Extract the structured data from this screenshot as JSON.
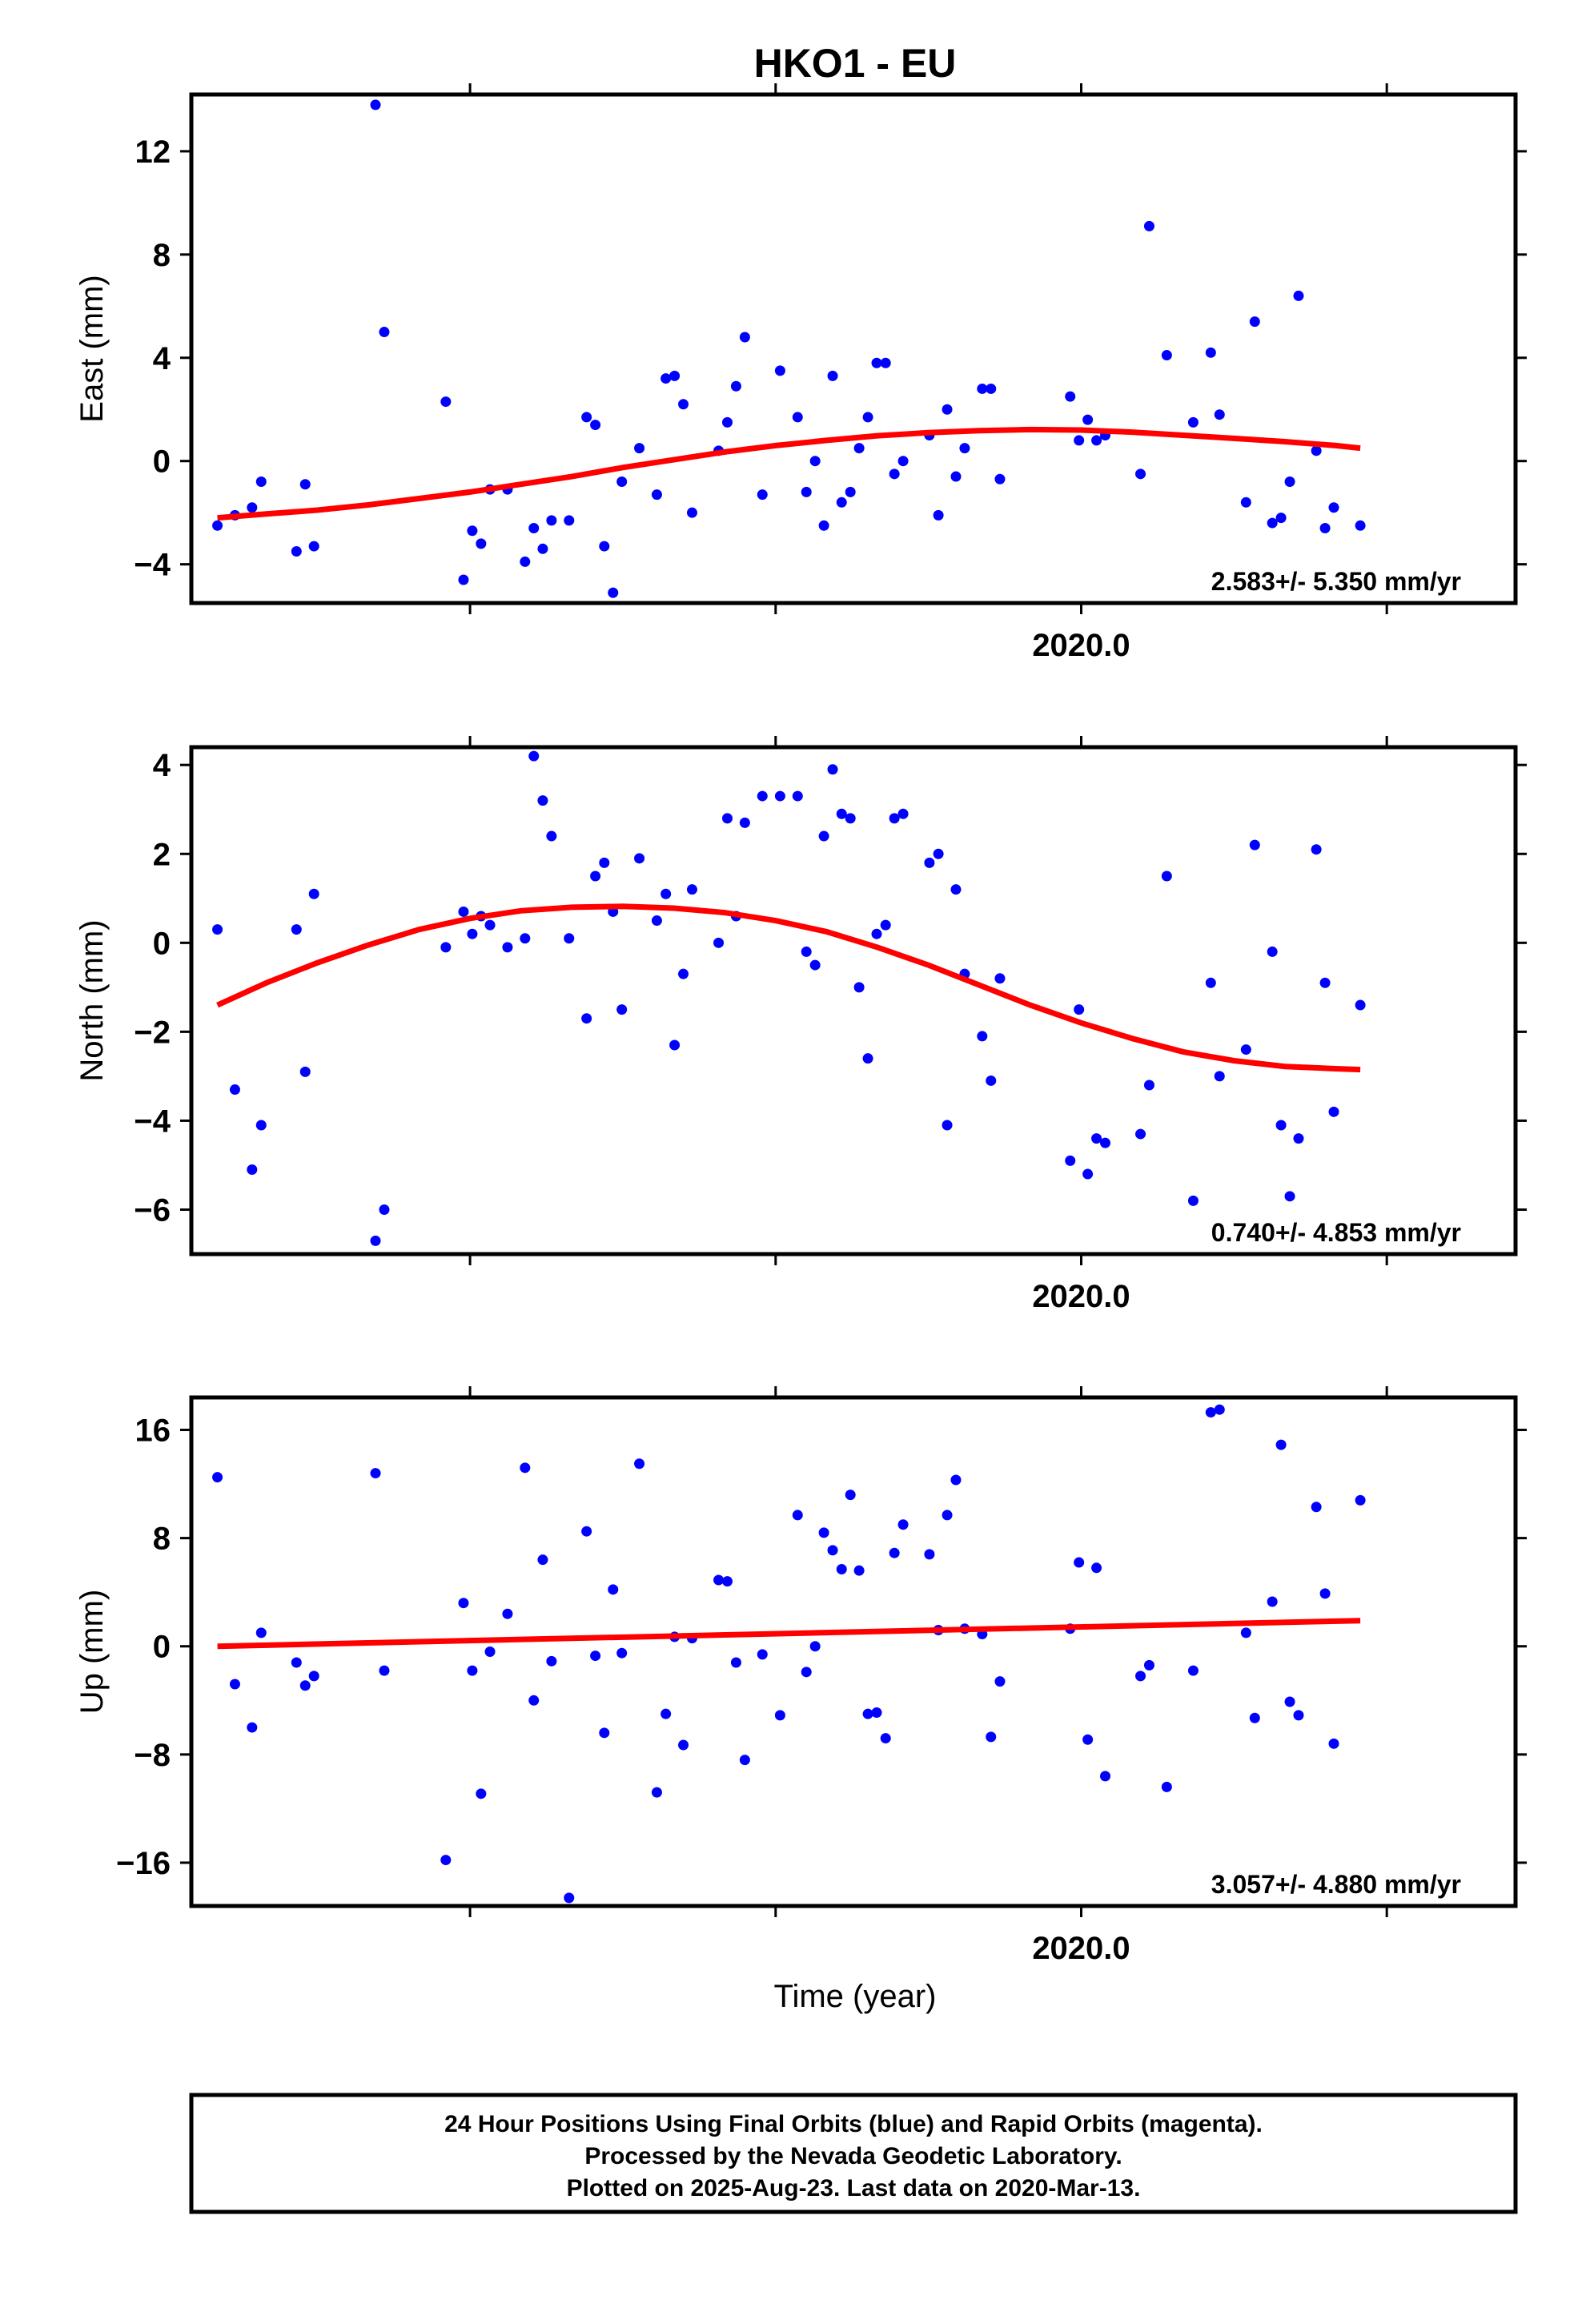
{
  "title": "HKO1 - EU",
  "colors": {
    "final_orbits": "#0000ff",
    "fit": "#ff0000",
    "frame": "#000000"
  },
  "x_axis": {
    "label": "Time (year)",
    "tick_label": "2020.0"
  },
  "footer": {
    "lines": [
      "24 Hour Positions Using Final Orbits (blue) and Rapid Orbits (magenta).",
      "Processed by the Nevada Geodetic Laboratory.",
      "Plotted on 2025-Aug-23. Last data on 2020-Mar-13."
    ]
  },
  "chart_data": [
    {
      "type": "scatter",
      "ylabel": "East (mm)",
      "rate_label": "2.583+/- 5.350 mm/yr",
      "xlim": [
        2019.5632,
        2020.2132
      ],
      "ylim": [
        -5.5,
        14.2
      ],
      "yticks": [
        -4,
        0,
        4,
        8,
        12
      ],
      "yticklabels": [
        "−4",
        "0",
        "4",
        "8",
        "12"
      ],
      "x_ticks": [
        2019.7,
        2019.85,
        2020.0,
        2020.15,
        2020.3
      ],
      "x_tick_labels": {
        "2020.0": "2020.0"
      },
      "points": [
        [
          2019.576,
          -2.5
        ],
        [
          2019.5846,
          -2.1
        ],
        [
          2019.593,
          -1.8
        ],
        [
          2019.5975,
          -0.8
        ],
        [
          2019.6148,
          -3.5
        ],
        [
          2019.6191,
          -0.9
        ],
        [
          2019.6234,
          -3.3
        ],
        [
          2019.6536,
          13.8
        ],
        [
          2019.6579,
          5.0
        ],
        [
          2019.6881,
          2.3
        ],
        [
          2019.6968,
          -4.6
        ],
        [
          2019.7011,
          -2.7
        ],
        [
          2019.7054,
          -3.2
        ],
        [
          2019.7098,
          -1.1
        ],
        [
          2019.7184,
          -1.1
        ],
        [
          2019.727,
          -3.9
        ],
        [
          2019.7313,
          -2.6
        ],
        [
          2019.7357,
          -3.4
        ],
        [
          2019.74,
          -2.3
        ],
        [
          2019.7486,
          -2.3
        ],
        [
          2019.7572,
          1.7
        ],
        [
          2019.7615,
          1.4
        ],
        [
          2019.7659,
          -3.3
        ],
        [
          2019.7702,
          -5.1
        ],
        [
          2019.7745,
          -0.8
        ],
        [
          2019.7831,
          0.5
        ],
        [
          2019.7917,
          -1.3
        ],
        [
          2019.7961,
          3.2
        ],
        [
          2019.8004,
          3.3
        ],
        [
          2019.8047,
          2.2
        ],
        [
          2019.809,
          -2.0
        ],
        [
          2019.822,
          0.4
        ],
        [
          2019.8263,
          1.5
        ],
        [
          2019.8306,
          2.9
        ],
        [
          2019.8349,
          4.8
        ],
        [
          2019.8435,
          -1.3
        ],
        [
          2019.8522,
          3.5
        ],
        [
          2019.8608,
          1.7
        ],
        [
          2019.8651,
          -1.2
        ],
        [
          2019.8694,
          0.0
        ],
        [
          2019.8737,
          -2.5
        ],
        [
          2019.878,
          3.3
        ],
        [
          2019.8824,
          -1.6
        ],
        [
          2019.8867,
          -1.2
        ],
        [
          2019.891,
          0.5
        ],
        [
          2019.8953,
          1.7
        ],
        [
          2019.8996,
          3.8
        ],
        [
          2019.904,
          3.8
        ],
        [
          2019.9083,
          -0.5
        ],
        [
          2019.9126,
          0.0
        ],
        [
          2019.9255,
          1.0
        ],
        [
          2019.9299,
          -2.1
        ],
        [
          2019.9342,
          2.0
        ],
        [
          2019.9385,
          -0.6
        ],
        [
          2019.9428,
          0.5
        ],
        [
          2019.9514,
          2.8
        ],
        [
          2019.9557,
          2.8
        ],
        [
          2019.9601,
          -0.7
        ],
        [
          2019.9946,
          2.5
        ],
        [
          2019.9989,
          0.8
        ],
        [
          2020.0032,
          1.6
        ],
        [
          2020.0075,
          0.8
        ],
        [
          2020.0118,
          1.0
        ],
        [
          2020.0291,
          -0.5
        ],
        [
          2020.0334,
          9.1
        ],
        [
          2020.042,
          4.1
        ],
        [
          2020.055,
          1.5
        ],
        [
          2020.0636,
          4.2
        ],
        [
          2020.0679,
          1.8
        ],
        [
          2020.0809,
          -1.6
        ],
        [
          2020.0852,
          5.4
        ],
        [
          2020.0938,
          -2.4
        ],
        [
          2020.0981,
          -2.2
        ],
        [
          2020.1024,
          -0.8
        ],
        [
          2020.1067,
          6.4
        ],
        [
          2020.1154,
          0.4
        ],
        [
          2020.1197,
          -2.6
        ],
        [
          2020.124,
          -1.8
        ],
        [
          2020.137,
          -2.5
        ]
      ],
      "fit": {
        "x": [
          2019.576,
          2019.6,
          2019.625,
          2019.65,
          2019.675,
          2019.7,
          2019.725,
          2019.75,
          2019.775,
          2019.8,
          2019.825,
          2019.85,
          2019.875,
          2019.9,
          2019.925,
          2019.95,
          2019.975,
          2020.0,
          2020.025,
          2020.05,
          2020.075,
          2020.1,
          2020.125,
          2020.137
        ],
        "y": [
          -2.2,
          -2.05,
          -1.9,
          -1.7,
          -1.45,
          -1.2,
          -0.9,
          -0.6,
          -0.25,
          0.05,
          0.35,
          0.6,
          0.8,
          0.98,
          1.1,
          1.18,
          1.22,
          1.2,
          1.12,
          1.0,
          0.88,
          0.75,
          0.6,
          0.5
        ]
      }
    },
    {
      "type": "scatter",
      "ylabel": "North (mm)",
      "rate_label": "0.740+/- 4.853 mm/yr",
      "xlim": [
        2019.5632,
        2020.2132
      ],
      "ylim": [
        -7.0,
        4.4
      ],
      "yticks": [
        -6,
        -4,
        -2,
        0,
        2,
        4
      ],
      "yticklabels": [
        "−6",
        "−4",
        "−2",
        "0",
        "2",
        "4"
      ],
      "x_ticks": [
        2019.7,
        2019.85,
        2020.0,
        2020.15,
        2020.3
      ],
      "x_tick_labels": {
        "2020.0": "2020.0"
      },
      "points": [
        [
          2019.576,
          0.3
        ],
        [
          2019.5846,
          -3.3
        ],
        [
          2019.593,
          -5.1
        ],
        [
          2019.5975,
          -4.1
        ],
        [
          2019.6148,
          0.3
        ],
        [
          2019.6191,
          -2.9
        ],
        [
          2019.6234,
          1.1
        ],
        [
          2019.6536,
          -6.7
        ],
        [
          2019.6579,
          -6.0
        ],
        [
          2019.6881,
          -0.1
        ],
        [
          2019.6968,
          0.7
        ],
        [
          2019.7011,
          0.2
        ],
        [
          2019.7054,
          0.6
        ],
        [
          2019.7098,
          0.4
        ],
        [
          2019.7184,
          -0.1
        ],
        [
          2019.727,
          0.1
        ],
        [
          2019.7313,
          4.2
        ],
        [
          2019.7357,
          3.2
        ],
        [
          2019.74,
          2.4
        ],
        [
          2019.7486,
          0.1
        ],
        [
          2019.7572,
          -1.7
        ],
        [
          2019.7615,
          1.5
        ],
        [
          2019.7659,
          1.8
        ],
        [
          2019.7702,
          0.7
        ],
        [
          2019.7745,
          -1.5
        ],
        [
          2019.7831,
          1.9
        ],
        [
          2019.7917,
          0.5
        ],
        [
          2019.7961,
          1.1
        ],
        [
          2019.8004,
          -2.3
        ],
        [
          2019.8047,
          -0.7
        ],
        [
          2019.809,
          1.2
        ],
        [
          2019.822,
          0.0
        ],
        [
          2019.8263,
          2.8
        ],
        [
          2019.8306,
          0.6
        ],
        [
          2019.8349,
          2.7
        ],
        [
          2019.8435,
          3.3
        ],
        [
          2019.8522,
          3.3
        ],
        [
          2019.8608,
          3.3
        ],
        [
          2019.8651,
          -0.2
        ],
        [
          2019.8694,
          -0.5
        ],
        [
          2019.8737,
          2.4
        ],
        [
          2019.878,
          3.9
        ],
        [
          2019.8824,
          2.9
        ],
        [
          2019.8867,
          2.8
        ],
        [
          2019.891,
          -1.0
        ],
        [
          2019.8953,
          -2.6
        ],
        [
          2019.8996,
          0.2
        ],
        [
          2019.904,
          0.4
        ],
        [
          2019.9083,
          2.8
        ],
        [
          2019.9126,
          2.9
        ],
        [
          2019.9255,
          1.8
        ],
        [
          2019.9299,
          2.0
        ],
        [
          2019.9342,
          -4.1
        ],
        [
          2019.9385,
          1.2
        ],
        [
          2019.9428,
          -0.7
        ],
        [
          2019.9514,
          -2.1
        ],
        [
          2019.9557,
          -3.1
        ],
        [
          2019.9601,
          -0.8
        ],
        [
          2019.9946,
          -4.9
        ],
        [
          2019.9989,
          -1.5
        ],
        [
          2020.0032,
          -5.2
        ],
        [
          2020.0075,
          -4.4
        ],
        [
          2020.0118,
          -4.5
        ],
        [
          2020.0291,
          -4.3
        ],
        [
          2020.0334,
          -3.2
        ],
        [
          2020.042,
          1.5
        ],
        [
          2020.055,
          -5.8
        ],
        [
          2020.0636,
          -0.9
        ],
        [
          2020.0679,
          -3.0
        ],
        [
          2020.0809,
          -2.4
        ],
        [
          2020.0852,
          2.2
        ],
        [
          2020.0938,
          -0.2
        ],
        [
          2020.0981,
          -4.1
        ],
        [
          2020.1024,
          -5.7
        ],
        [
          2020.1067,
          -4.4
        ],
        [
          2020.1154,
          2.1
        ],
        [
          2020.1197,
          -0.9
        ],
        [
          2020.124,
          -3.8
        ],
        [
          2020.137,
          -1.4
        ]
      ],
      "fit": {
        "x": [
          2019.576,
          2019.6,
          2019.625,
          2019.65,
          2019.675,
          2019.7,
          2019.725,
          2019.75,
          2019.775,
          2019.8,
          2019.825,
          2019.85,
          2019.875,
          2019.9,
          2019.925,
          2019.95,
          2019.975,
          2020.0,
          2020.025,
          2020.05,
          2020.075,
          2020.1,
          2020.125,
          2020.137
        ],
        "y": [
          -1.4,
          -0.9,
          -0.45,
          -0.05,
          0.3,
          0.55,
          0.72,
          0.8,
          0.82,
          0.78,
          0.68,
          0.5,
          0.25,
          -0.1,
          -0.5,
          -0.95,
          -1.4,
          -1.8,
          -2.15,
          -2.45,
          -2.65,
          -2.78,
          -2.83,
          -2.85
        ]
      }
    },
    {
      "type": "scatter",
      "ylabel": "Up (mm)",
      "rate_label": "3.057+/- 4.880 mm/yr",
      "xlim": [
        2019.5632,
        2020.2132
      ],
      "ylim": [
        -19.2,
        18.4
      ],
      "yticks": [
        -16,
        -8,
        0,
        8,
        16
      ],
      "yticklabels": [
        "−16",
        "−8",
        "0",
        "8",
        "16"
      ],
      "x_ticks": [
        2019.7,
        2019.85,
        2020.0,
        2020.15,
        2020.3
      ],
      "x_tick_labels": {
        "2020.0": "2020.0"
      },
      "points": [
        [
          2019.576,
          12.5
        ],
        [
          2019.5846,
          -2.8
        ],
        [
          2019.593,
          -6.0
        ],
        [
          2019.5975,
          1.0
        ],
        [
          2019.6148,
          -1.2
        ],
        [
          2019.6191,
          -2.9
        ],
        [
          2019.6234,
          -2.2
        ],
        [
          2019.6536,
          12.8
        ],
        [
          2019.6579,
          -1.8
        ],
        [
          2019.6881,
          -15.8
        ],
        [
          2019.6968,
          3.2
        ],
        [
          2019.7011,
          -1.8
        ],
        [
          2019.7054,
          -10.9
        ],
        [
          2019.7098,
          -0.4
        ],
        [
          2019.7184,
          2.4
        ],
        [
          2019.727,
          13.2
        ],
        [
          2019.7313,
          -4.0
        ],
        [
          2019.7357,
          6.4
        ],
        [
          2019.74,
          -1.1
        ],
        [
          2019.7486,
          -18.6
        ],
        [
          2019.7572,
          8.5
        ],
        [
          2019.7615,
          -0.7
        ],
        [
          2019.7659,
          -6.4
        ],
        [
          2019.7702,
          4.2
        ],
        [
          2019.7745,
          -0.5
        ],
        [
          2019.7831,
          13.5
        ],
        [
          2019.7917,
          -10.8
        ],
        [
          2019.7961,
          -5.0
        ],
        [
          2019.8004,
          0.7
        ],
        [
          2019.8047,
          -7.3
        ],
        [
          2019.809,
          0.6
        ],
        [
          2019.822,
          4.9
        ],
        [
          2019.8263,
          4.8
        ],
        [
          2019.8306,
          -1.2
        ],
        [
          2019.8349,
          -8.4
        ],
        [
          2019.8435,
          -0.6
        ],
        [
          2019.8522,
          -5.1
        ],
        [
          2019.8608,
          9.7
        ],
        [
          2019.8651,
          -1.9
        ],
        [
          2019.8694,
          0.0
        ],
        [
          2019.8737,
          8.4
        ],
        [
          2019.878,
          7.1
        ],
        [
          2019.8824,
          5.7
        ],
        [
          2019.8867,
          11.2
        ],
        [
          2019.891,
          5.6
        ],
        [
          2019.8953,
          -5.0
        ],
        [
          2019.8996,
          -4.9
        ],
        [
          2019.904,
          -6.8
        ],
        [
          2019.9083,
          6.9
        ],
        [
          2019.9126,
          9.0
        ],
        [
          2019.9255,
          6.8
        ],
        [
          2019.9299,
          1.2
        ],
        [
          2019.9342,
          9.7
        ],
        [
          2019.9385,
          12.3
        ],
        [
          2019.9428,
          1.3
        ],
        [
          2019.9514,
          0.9
        ],
        [
          2019.9557,
          -6.7
        ],
        [
          2019.9601,
          -2.6
        ],
        [
          2019.9946,
          1.3
        ],
        [
          2019.9989,
          6.2
        ],
        [
          2020.0032,
          -6.9
        ],
        [
          2020.0075,
          5.8
        ],
        [
          2020.0118,
          -9.6
        ],
        [
          2020.0291,
          -2.2
        ],
        [
          2020.0334,
          -1.4
        ],
        [
          2020.042,
          -10.4
        ],
        [
          2020.055,
          -1.8
        ],
        [
          2020.0636,
          17.3
        ],
        [
          2020.0679,
          17.5
        ],
        [
          2020.0809,
          1.0
        ],
        [
          2020.0852,
          -5.3
        ],
        [
          2020.0938,
          3.3
        ],
        [
          2020.0981,
          14.9
        ],
        [
          2020.1024,
          -4.1
        ],
        [
          2020.1067,
          -5.1
        ],
        [
          2020.1154,
          10.3
        ],
        [
          2020.1197,
          3.9
        ],
        [
          2020.124,
          -7.2
        ],
        [
          2020.137,
          10.8
        ]
      ],
      "fit": {
        "x": [
          2019.576,
          2020.137
        ],
        "y": [
          0.0,
          1.9
        ]
      }
    }
  ]
}
